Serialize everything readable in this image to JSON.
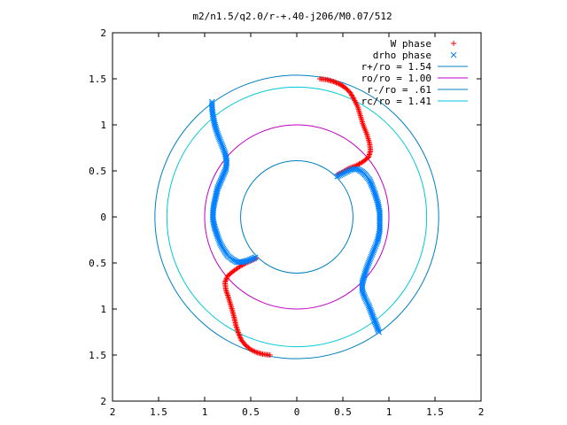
{
  "chart_data": {
    "type": "scatter",
    "title": "m2/n1.5/q2.0/r-+.40-j206/M0.07/512",
    "xlim": [
      -2,
      2
    ],
    "ylim": [
      -2,
      2
    ],
    "x_ticks": [
      -2,
      -1.5,
      -1,
      -0.5,
      0,
      0.5,
      1,
      1.5,
      2
    ],
    "y_ticks": [
      -2,
      -1.5,
      -1,
      -0.5,
      0,
      0.5,
      1,
      1.5,
      2
    ],
    "x_tick_labels": [
      "2",
      "1.5",
      "1",
      "0.5",
      "0",
      "0.5",
      "1",
      "1.5",
      "2"
    ],
    "y_tick_labels": [
      "2",
      "1.5",
      "1",
      "0.5",
      "0",
      "0.5",
      "1",
      "1.5",
      "2"
    ],
    "grid": false,
    "legend_position": "top-right",
    "series": [
      {
        "name": "W phase",
        "kind": "points",
        "marker": "plus",
        "color": "#ff0000",
        "segments": [
          [
            [
              0.25,
              1.5
            ],
            [
              0.33,
              1.49
            ],
            [
              0.4,
              1.47
            ],
            [
              0.47,
              1.44
            ],
            [
              0.53,
              1.4
            ],
            [
              0.58,
              1.35
            ],
            [
              0.62,
              1.28
            ],
            [
              0.66,
              1.2
            ],
            [
              0.69,
              1.1
            ],
            [
              0.72,
              1.0
            ],
            [
              0.76,
              0.9
            ],
            [
              0.79,
              0.8
            ],
            [
              0.8,
              0.72
            ],
            [
              0.78,
              0.65
            ],
            [
              0.72,
              0.6
            ],
            [
              0.65,
              0.56
            ],
            [
              0.57,
              0.53
            ],
            [
              0.5,
              0.49
            ],
            [
              0.44,
              0.46
            ]
          ],
          [
            [
              -0.29,
              -1.5
            ],
            [
              -0.37,
              -1.49
            ],
            [
              -0.44,
              -1.47
            ],
            [
              -0.5,
              -1.44
            ],
            [
              -0.55,
              -1.4
            ],
            [
              -0.6,
              -1.34
            ],
            [
              -0.63,
              -1.27
            ],
            [
              -0.66,
              -1.18
            ],
            [
              -0.68,
              -1.09
            ],
            [
              -0.71,
              -0.98
            ],
            [
              -0.74,
              -0.88
            ],
            [
              -0.77,
              -0.79
            ],
            [
              -0.78,
              -0.71
            ],
            [
              -0.75,
              -0.64
            ],
            [
              -0.69,
              -0.59
            ],
            [
              -0.62,
              -0.54
            ],
            [
              -0.55,
              -0.5
            ],
            [
              -0.48,
              -0.47
            ],
            [
              -0.44,
              -0.45
            ]
          ]
        ]
      },
      {
        "name": "drho phase",
        "kind": "points",
        "marker": "cross",
        "color": "#0080ff",
        "segments": [
          [
            [
              0.44,
              0.44
            ],
            [
              0.5,
              0.47
            ],
            [
              0.56,
              0.5
            ],
            [
              0.61,
              0.52
            ],
            [
              0.66,
              0.52
            ],
            [
              0.71,
              0.49
            ],
            [
              0.75,
              0.45
            ],
            [
              0.79,
              0.4
            ],
            [
              0.82,
              0.33
            ],
            [
              0.85,
              0.25
            ],
            [
              0.88,
              0.15
            ],
            [
              0.9,
              0.05
            ],
            [
              0.9,
              -0.05
            ],
            [
              0.9,
              -0.15
            ],
            [
              0.88,
              -0.25
            ],
            [
              0.84,
              -0.35
            ],
            [
              0.8,
              -0.45
            ],
            [
              0.76,
              -0.55
            ],
            [
              0.73,
              -0.65
            ],
            [
              0.71,
              -0.72
            ],
            [
              0.71,
              -0.8
            ],
            [
              0.74,
              -0.88
            ],
            [
              0.78,
              -0.96
            ],
            [
              0.81,
              -1.04
            ],
            [
              0.84,
              -1.12
            ],
            [
              0.87,
              -1.19
            ],
            [
              0.89,
              -1.25
            ]
          ],
          [
            [
              -0.45,
              -0.44
            ],
            [
              -0.52,
              -0.47
            ],
            [
              -0.59,
              -0.49
            ],
            [
              -0.65,
              -0.49
            ],
            [
              -0.7,
              -0.46
            ],
            [
              -0.75,
              -0.42
            ],
            [
              -0.79,
              -0.36
            ],
            [
              -0.83,
              -0.29
            ],
            [
              -0.86,
              -0.21
            ],
            [
              -0.89,
              -0.12
            ],
            [
              -0.91,
              -0.03
            ],
            [
              -0.91,
              0.05
            ],
            [
              -0.9,
              0.13
            ],
            [
              -0.88,
              0.22
            ],
            [
              -0.86,
              0.31
            ],
            [
              -0.83,
              0.38
            ],
            [
              -0.8,
              0.45
            ],
            [
              -0.77,
              0.52
            ],
            [
              -0.76,
              0.6
            ],
            [
              -0.78,
              0.7
            ],
            [
              -0.82,
              0.8
            ],
            [
              -0.86,
              0.9
            ],
            [
              -0.89,
              1.0
            ],
            [
              -0.91,
              1.1
            ],
            [
              -0.92,
              1.18
            ],
            [
              -0.92,
              1.25
            ]
          ]
        ]
      },
      {
        "name": "r+/ro = 1.54",
        "kind": "circle",
        "radius": 1.54,
        "color": "#0080c0"
      },
      {
        "name": "ro/ro = 1.00",
        "kind": "circle",
        "radius": 1.0,
        "color": "#c000c0"
      },
      {
        "name": "r-/ro = .61",
        "kind": "circle",
        "radius": 0.61,
        "color": "#0080c0"
      },
      {
        "name": "rc/ro = 1.41",
        "kind": "circle",
        "radius": 1.41,
        "color": "#00c8d8"
      }
    ]
  }
}
